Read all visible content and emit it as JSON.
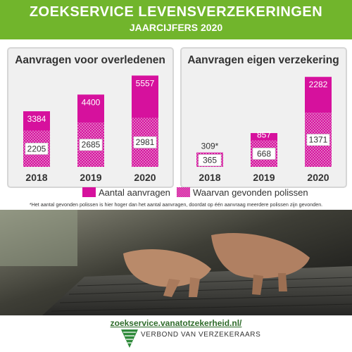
{
  "header": {
    "title": "ZOEKSERVICE LEVENSVERZEKERINGEN",
    "subtitle": "JAARCIJFERS 2020"
  },
  "colors": {
    "header_green": "#71b52c",
    "magenta": "#d6119d",
    "magenta_hatched": "#e47bc9"
  },
  "chart_data": [
    {
      "type": "bar",
      "title": "Aanvragen voor overledenen",
      "categories": [
        "2018",
        "2019",
        "2020"
      ],
      "series": [
        {
          "name": "Aantal aanvragen",
          "values": [
            3384,
            4400,
            5557
          ]
        },
        {
          "name": "Waarvan gevonden polissen",
          "values": [
            2205,
            2685,
            2981
          ]
        }
      ],
      "ylim": [
        0,
        6000
      ],
      "total_labels": [
        "3384",
        "4400",
        "5557"
      ],
      "found_labels": [
        "2205",
        "2685",
        "2981"
      ]
    },
    {
      "type": "bar",
      "title": "Aanvragen eigen verzekering",
      "categories": [
        "2018",
        "2019",
        "2020"
      ],
      "series": [
        {
          "name": "Aantal aanvragen",
          "values": [
            309,
            857,
            2282
          ]
        },
        {
          "name": "Waarvan gevonden polissen",
          "values": [
            365,
            668,
            1371
          ]
        }
      ],
      "ylim": [
        0,
        2500
      ],
      "total_labels": [
        "309*",
        "857",
        "2282"
      ],
      "found_labels": [
        "365",
        "668",
        "1371"
      ]
    }
  ],
  "legend": {
    "total": "Aantal aanvragen",
    "found": "Waarvan gevonden polissen"
  },
  "footnote": "*Het aantal gevonden polissen is hier hoger dan het aantal aanvragen, doordat op één aanvraag meerdere polissen zijn gevonden.",
  "footer": {
    "url": "zoekservice.vanatotzekerheid.nl/",
    "organization": "VERBOND VAN VERZEKERAARS",
    "logo_icon": "verbond-logo-icon"
  }
}
